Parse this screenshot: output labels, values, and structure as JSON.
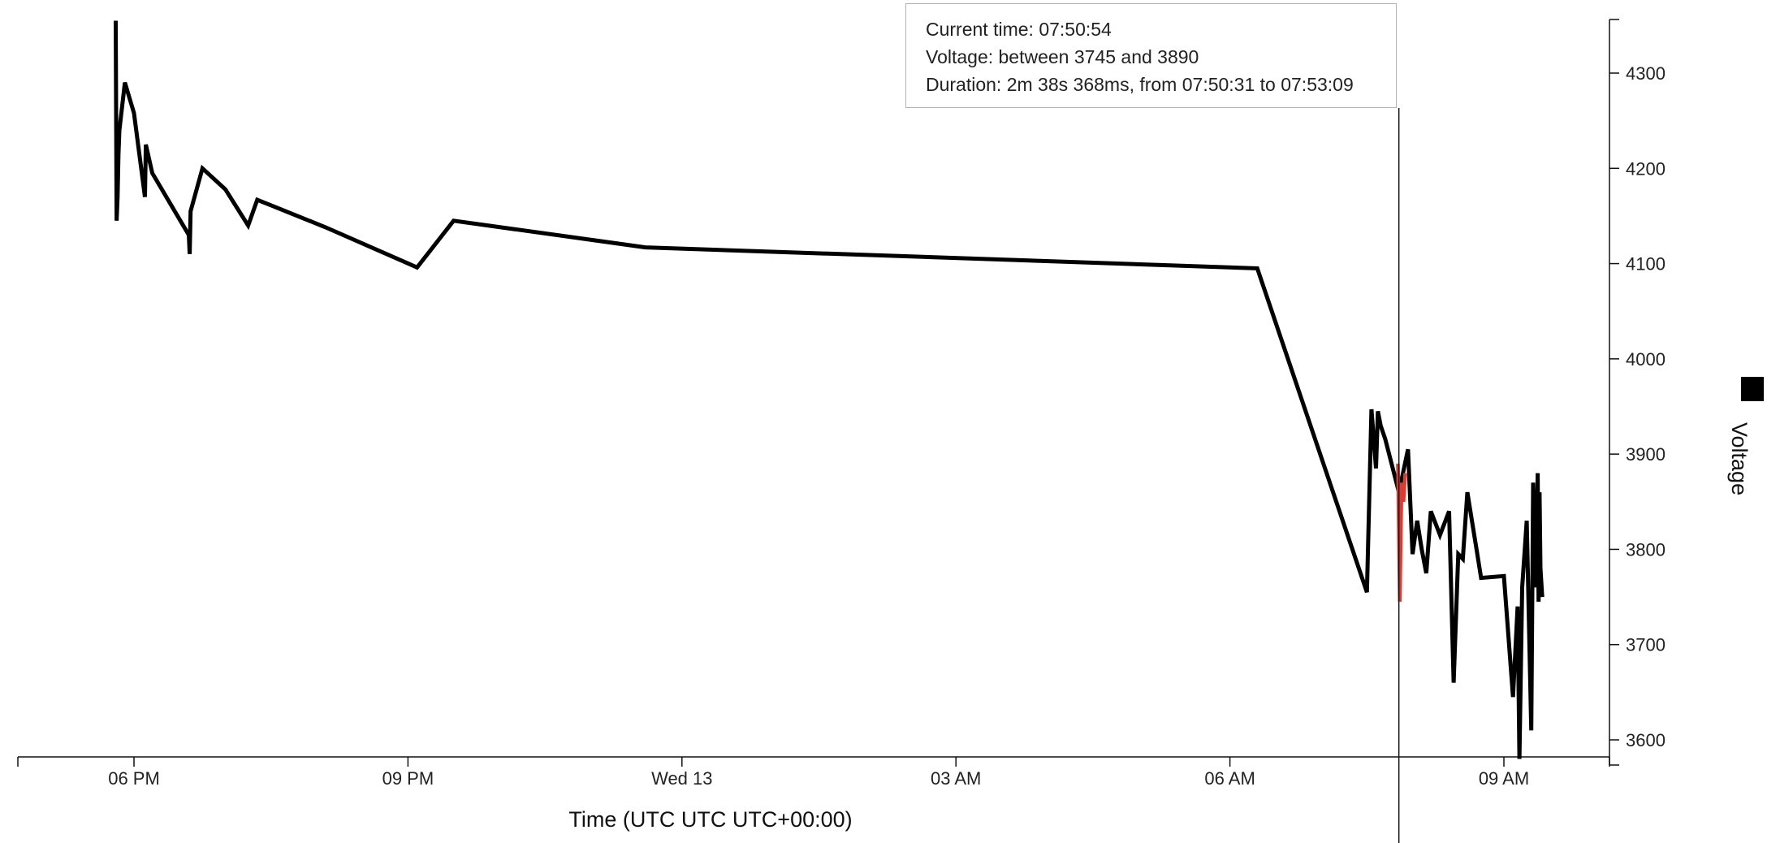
{
  "chart_data": {
    "type": "line",
    "xlabel": "Time (UTC UTC UTC+00:00)",
    "ylabel": "",
    "x_ticks": [
      "06 PM",
      "09 PM",
      "Wed 13",
      "03 AM",
      "06 AM",
      "09 AM"
    ],
    "x_tick_hours": [
      18,
      21,
      24,
      27,
      30,
      33
    ],
    "x_range_hours": [
      16.75,
      34.2
    ],
    "y_ticks": [
      3600,
      3700,
      3800,
      3900,
      4000,
      4100,
      4200,
      4300
    ],
    "ylim": [
      3580,
      4355
    ],
    "y_axis_side": "right",
    "legend_position": "right",
    "series": [
      {
        "name": "Voltage",
        "color": "#000000",
        "x_hours": [
          17.8,
          17.81,
          17.82,
          17.83,
          17.84,
          17.9,
          18.0,
          18.12,
          18.13,
          18.2,
          18.6,
          18.61,
          18.62,
          18.75,
          19.0,
          19.25,
          19.35,
          20.1,
          21.1,
          21.5,
          23.6,
          30.3,
          31.5,
          31.55,
          31.6,
          31.62,
          31.65,
          31.7,
          31.85,
          31.95,
          32.0,
          32.05,
          32.1,
          32.15,
          32.2,
          32.3,
          32.4,
          32.45,
          32.5,
          32.55,
          32.6,
          32.65,
          32.7,
          32.75,
          33.0,
          33.1,
          33.15,
          33.17,
          33.2,
          33.25,
          33.3,
          33.32,
          33.35,
          33.37,
          33.38,
          33.39,
          33.4,
          33.42
        ],
        "values": [
          4355,
          4145,
          4170,
          4215,
          4240,
          4290,
          4258,
          4170,
          4225,
          4195,
          4130,
          4110,
          4155,
          4200,
          4178,
          4140,
          4167,
          4138,
          4096,
          4145,
          4117,
          4095,
          3755,
          3947,
          3885,
          3945,
          3930,
          3916,
          3860,
          3905,
          3795,
          3830,
          3800,
          3775,
          3840,
          3815,
          3840,
          3660,
          3795,
          3790,
          3860,
          3830,
          3800,
          3770,
          3772,
          3645,
          3740,
          3580,
          3760,
          3830,
          3610,
          3870,
          3760,
          3880,
          3745,
          3860,
          3780,
          3750
        ]
      },
      {
        "name": "",
        "color": "#e03a2f",
        "x_hours": [
          31.84,
          31.86,
          31.88,
          31.9,
          31.92
        ],
        "values": [
          3890,
          3745,
          3870,
          3850,
          3880
        ]
      }
    ],
    "cursor_hours": 31.85
  },
  "tooltip": {
    "current_time": "Current time: 07:50:54",
    "voltage": "Voltage: between 3745 and 3890",
    "duration": "Duration: 2m 38s 368ms, from 07:50:31 to 07:53:09"
  },
  "legend": {
    "label": "Voltage",
    "color": "#000000"
  }
}
